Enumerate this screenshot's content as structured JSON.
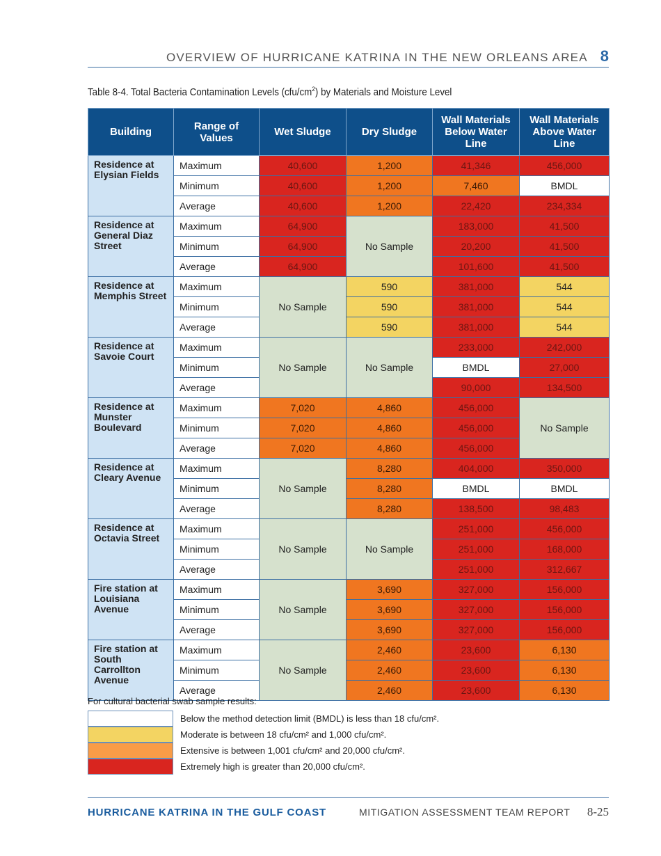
{
  "header": {
    "running_title": "OVERVIEW OF HURRICANE KATRINA IN THE NEW ORLEANS AREA",
    "chapter": "8"
  },
  "caption": {
    "pre": "Table 8-4. Total Bacteria Contamination Levels (cfu/cm",
    "sup": "2",
    "post": ") by Materials and Moisture Level"
  },
  "columns": [
    "Building",
    "Range of Values",
    "Wet Sludge",
    "Dry Sludge",
    "Wall Materials Below Water Line",
    "Wall Materials Above Water Line"
  ],
  "ranges": [
    "Maximum",
    "Minimum",
    "Average"
  ],
  "colors": {
    "red": "#d9251f",
    "orange": "#f07620",
    "yellow": "#f3d462",
    "white": "#ffffff",
    "no_sample": "#d6e1cd",
    "header": "#0e4f8a",
    "building": "#cfe3f4"
  },
  "buildings": [
    {
      "name": "Residence at Elysian Fields",
      "wet": [
        [
          "40,600",
          "red"
        ],
        [
          "40,600",
          "red"
        ],
        [
          "40,600",
          "red"
        ]
      ],
      "dry": [
        [
          "1,200",
          "orange"
        ],
        [
          "1,200",
          "orange"
        ],
        [
          "1,200",
          "orange"
        ]
      ],
      "below": [
        [
          "41,346",
          "red"
        ],
        [
          "7,460",
          "orange"
        ],
        [
          "22,420",
          "red"
        ]
      ],
      "above": [
        [
          "456,000",
          "red"
        ],
        [
          "BMDL",
          "white"
        ],
        [
          "234,334",
          "red"
        ]
      ]
    },
    {
      "name": "Residence at General Diaz Street",
      "wet": [
        [
          "64,900",
          "red"
        ],
        [
          "64,900",
          "red"
        ],
        [
          "64,900",
          "red"
        ]
      ],
      "dry": "No Sample",
      "below": [
        [
          "183,000",
          "red"
        ],
        [
          "20,200",
          "red"
        ],
        [
          "101,600",
          "red"
        ]
      ],
      "above": [
        [
          "41,500",
          "red"
        ],
        [
          "41,500",
          "red"
        ],
        [
          "41,500",
          "red"
        ]
      ]
    },
    {
      "name": "Residence at Memphis Street",
      "wet": "No Sample",
      "dry": [
        [
          "590",
          "yellow"
        ],
        [
          "590",
          "yellow"
        ],
        [
          "590",
          "yellow"
        ]
      ],
      "below": [
        [
          "381,000",
          "red"
        ],
        [
          "381,000",
          "red"
        ],
        [
          "381,000",
          "red"
        ]
      ],
      "above": [
        [
          "544",
          "yellow"
        ],
        [
          "544",
          "yellow"
        ],
        [
          "544",
          "yellow"
        ]
      ]
    },
    {
      "name": "Residence at Savoie Court",
      "wet": "No Sample",
      "dry": "No Sample",
      "below": [
        [
          "233,000",
          "red"
        ],
        [
          "BMDL",
          "white"
        ],
        [
          "90,000",
          "red"
        ]
      ],
      "above": [
        [
          "242,000",
          "red"
        ],
        [
          "27,000",
          "red"
        ],
        [
          "134,500",
          "red"
        ]
      ]
    },
    {
      "name": "Residence at Munster Boulevard",
      "wet": [
        [
          "7,020",
          "orange"
        ],
        [
          "7,020",
          "orange"
        ],
        [
          "7,020",
          "orange"
        ]
      ],
      "dry": [
        [
          "4,860",
          "orange"
        ],
        [
          "4,860",
          "orange"
        ],
        [
          "4,860",
          "orange"
        ]
      ],
      "below": [
        [
          "456,000",
          "red"
        ],
        [
          "456,000",
          "red"
        ],
        [
          "456,000",
          "red"
        ]
      ],
      "above": "No Sample"
    },
    {
      "name": "Residence at Cleary Avenue",
      "wet": "No Sample",
      "dry": [
        [
          "8,280",
          "orange"
        ],
        [
          "8,280",
          "orange"
        ],
        [
          "8,280",
          "orange"
        ]
      ],
      "below": [
        [
          "404,000",
          "red"
        ],
        [
          "BMDL",
          "white"
        ],
        [
          "138,500",
          "red"
        ]
      ],
      "above": [
        [
          "350,000",
          "red"
        ],
        [
          "BMDL",
          "white"
        ],
        [
          "98,483",
          "red"
        ]
      ]
    },
    {
      "name": "Residence at Octavia Street",
      "wet": "No Sample",
      "dry": "No Sample",
      "below": [
        [
          "251,000",
          "red"
        ],
        [
          "251,000",
          "red"
        ],
        [
          "251,000",
          "red"
        ]
      ],
      "above": [
        [
          "456,000",
          "red"
        ],
        [
          "168,000",
          "red"
        ],
        [
          "312,667",
          "red"
        ]
      ]
    },
    {
      "name": "Fire station at Louisiana Avenue",
      "wet": "No Sample",
      "dry": [
        [
          "3,690",
          "orange"
        ],
        [
          "3,690",
          "orange"
        ],
        [
          "3,690",
          "orange"
        ]
      ],
      "below": [
        [
          "327,000",
          "red"
        ],
        [
          "327,000",
          "red"
        ],
        [
          "327,000",
          "red"
        ]
      ],
      "above": [
        [
          "156,000",
          "red"
        ],
        [
          "156,000",
          "red"
        ],
        [
          "156,000",
          "red"
        ]
      ]
    },
    {
      "name": "Fire station at South Carrollton Avenue",
      "wet": "No Sample",
      "dry": [
        [
          "2,460",
          "orange"
        ],
        [
          "2,460",
          "orange"
        ],
        [
          "2,460",
          "orange"
        ]
      ],
      "below": [
        [
          "23,600",
          "red"
        ],
        [
          "23,600",
          "red"
        ],
        [
          "23,600",
          "red"
        ]
      ],
      "above": [
        [
          "6,130",
          "orange"
        ],
        [
          "6,130",
          "orange"
        ],
        [
          "6,130",
          "orange"
        ]
      ]
    }
  ],
  "legend": {
    "intro": "For cultural bacterial swab sample results:",
    "items": [
      {
        "level": "white",
        "text": "Below the method detection limit (BMDL) is less than 18 cfu/cm²."
      },
      {
        "level": "yellow",
        "text": "Moderate is between 18 cfu/cm² and 1,000 cfu/cm²."
      },
      {
        "level": "light-orange",
        "text": "Extensive is between 1,001 cfu/cm² and 20,000 cfu/cm²."
      },
      {
        "level": "red",
        "text": "Extremely high is greater than 20,000 cfu/cm²."
      }
    ]
  },
  "footer": {
    "left": "HURRICANE KATRINA IN THE GULF COAST",
    "middle": "MITIGATION ASSESSMENT TEAM REPORT",
    "page": "8-25"
  }
}
